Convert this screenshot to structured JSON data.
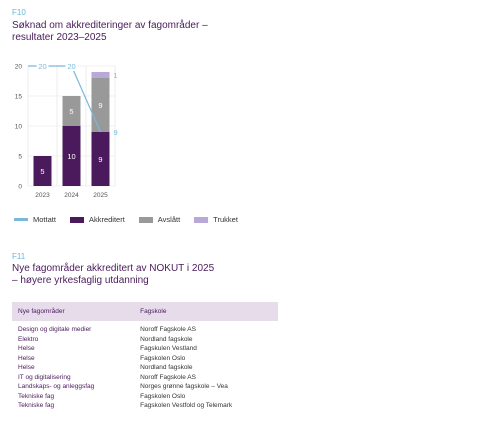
{
  "figure1": {
    "code": "F10",
    "title_line1": "Søknad om akkrediteringer av fagområder –",
    "title_line2": "resultater 2023–2025"
  },
  "figure2": {
    "code": "F11",
    "title_line1": "Nye fagområder akkreditert av NOKUT i 2025",
    "title_line2": "– høyere yrkesfaglig utdanning"
  },
  "colors": {
    "mottatt": "#7ab8d9",
    "akkreditert": "#4a1a5c",
    "avslatt": "#999999",
    "trukket": "#b9a9d6",
    "title": "#4a1a5c"
  },
  "chart_data": {
    "type": "bar",
    "stacked": true,
    "categories": [
      "2023",
      "2024",
      "2025"
    ],
    "ylim": [
      0,
      20
    ],
    "yticks": [
      "0",
      "5",
      "10",
      "15",
      "20"
    ],
    "grid": true,
    "legend_position": "bottom-left",
    "series": [
      {
        "name": "Akkreditert",
        "values": [
          5,
          10,
          9
        ]
      },
      {
        "name": "Avslått",
        "values": [
          0,
          5,
          9
        ]
      },
      {
        "name": "Trukket",
        "values": [
          0,
          0,
          1
        ]
      }
    ],
    "line": {
      "name": "Mottatt",
      "values": [
        20,
        20,
        9
      ]
    },
    "bar_labels": [
      [
        "5",
        "",
        ""
      ],
      [
        "10",
        "5",
        ""
      ],
      [
        "9",
        "9",
        "1"
      ]
    ],
    "line_labels": [
      "20",
      "20",
      "9"
    ]
  },
  "legend": {
    "mottatt": "Mottatt",
    "akkreditert": "Akkreditert",
    "avslatt": "Avslått",
    "trukket": "Trukket"
  },
  "table": {
    "headers": [
      "Nye fagområder",
      "Fagskole"
    ],
    "rows": [
      [
        "Design og digitale medier",
        "Noroff Fagskole AS"
      ],
      [
        "Elektro",
        "Nordland fagskole"
      ],
      [
        "Helse",
        "Fagskulen Vestland"
      ],
      [
        "Helse",
        "Fagskolen Oslo"
      ],
      [
        "Helse",
        "Nordland fagskole"
      ],
      [
        "IT og digitalisering",
        "Noroff Fagskole AS"
      ],
      [
        "Landskaps- og anleggsfag",
        "Norges grønne fagskole – Vea"
      ],
      [
        "Tekniske fag",
        "Fagskolen Oslo"
      ],
      [
        "Tekniske fag",
        "Fagskolen Vestfold og Telemark"
      ]
    ]
  }
}
